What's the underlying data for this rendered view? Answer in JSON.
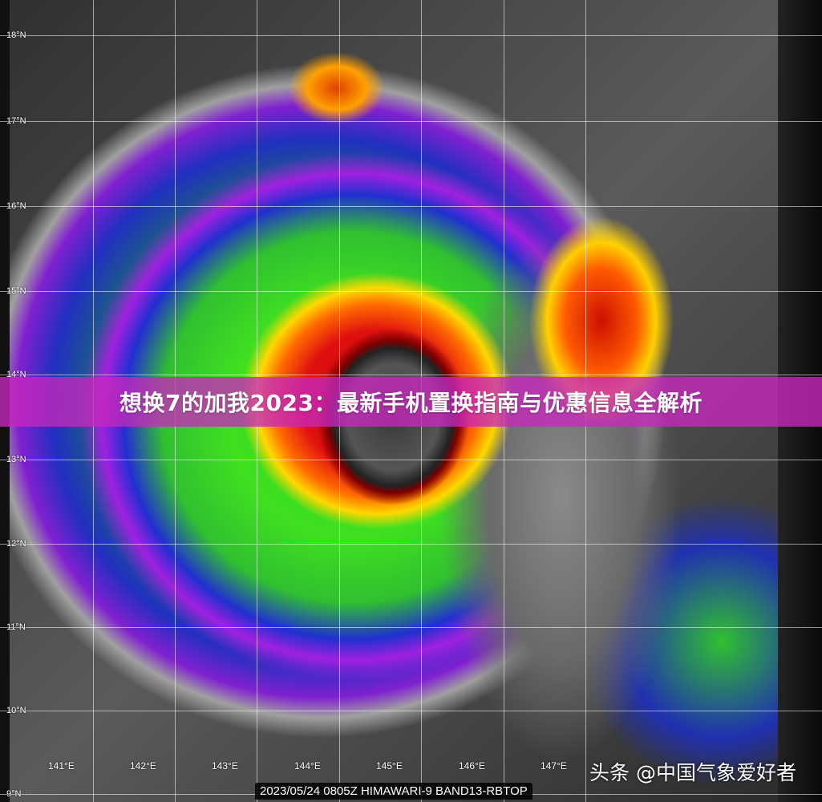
{
  "image": {
    "title_banner": "想换7的加我2023：最新手机置换指南与优惠信息全解析",
    "caption": "2023/05/24 0805Z HIMAWARI-9 BAND13-RBTOP",
    "watermark": "头条 @中国气象爱好者",
    "banner_color": "#c828be",
    "latitude_labels": [
      "18°N",
      "17°N",
      "16°N",
      "15°N",
      "14°N",
      "13°N",
      "12°N",
      "11°N",
      "10°N",
      "9°N"
    ],
    "longitude_labels": [
      "141°E",
      "142°E",
      "143°E",
      "144°E",
      "145°E",
      "146°E",
      "147°E"
    ]
  }
}
